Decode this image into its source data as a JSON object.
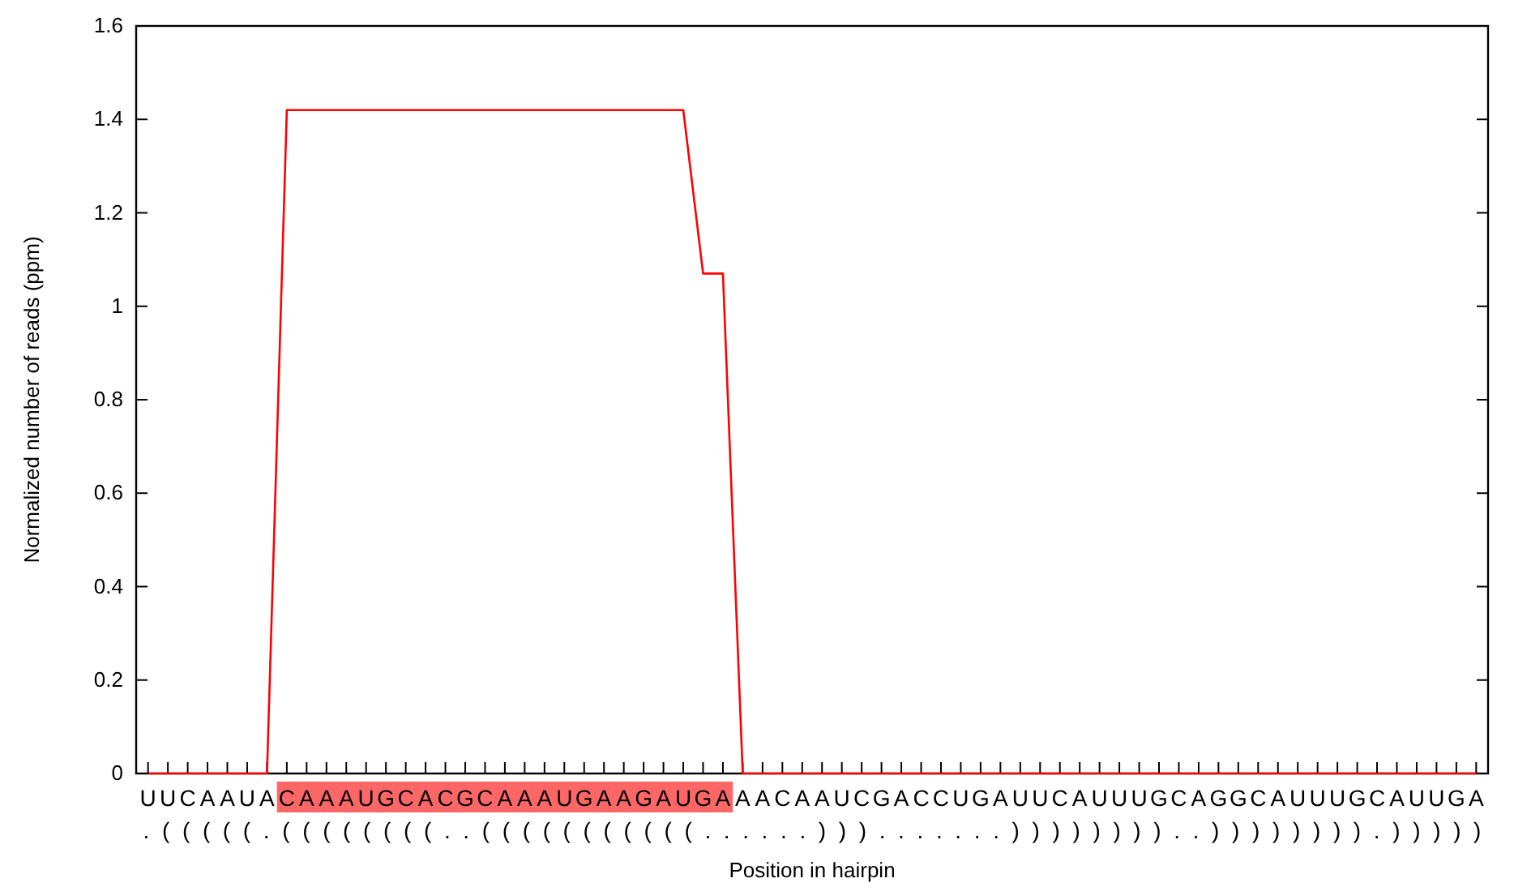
{
  "chart_data": {
    "type": "line",
    "xlabel": "Position in hairpin",
    "ylabel": "Normalized number of reads (ppm)",
    "categories": [
      "U",
      "U",
      "C",
      "A",
      "A",
      "U",
      "A",
      "C",
      "A",
      "A",
      "A",
      "U",
      "G",
      "C",
      "A",
      "C",
      "G",
      "C",
      "A",
      "A",
      "A",
      "U",
      "G",
      "A",
      "A",
      "G",
      "A",
      "U",
      "G",
      "A",
      "A",
      "A",
      "C",
      "A",
      "A",
      "U",
      "C",
      "G",
      "A",
      "C",
      "C",
      "U",
      "G",
      "A",
      "U",
      "U",
      "C",
      "A",
      "U",
      "U",
      "U",
      "G",
      "C",
      "A",
      "G",
      "G",
      "C",
      "A",
      "U",
      "U",
      "U",
      "G",
      "C",
      "A",
      "U",
      "U",
      "G",
      "A"
    ],
    "series": [
      {
        "color": "#ff0000",
        "values": [
          0,
          0,
          0,
          0,
          0,
          0,
          0,
          1.42,
          1.42,
          1.42,
          1.42,
          1.42,
          1.42,
          1.42,
          1.42,
          1.42,
          1.42,
          1.42,
          1.42,
          1.42,
          1.42,
          1.42,
          1.42,
          1.42,
          1.42,
          1.42,
          1.42,
          1.42,
          1.07,
          1.07,
          0,
          0,
          0,
          0,
          0,
          0,
          0,
          0,
          0,
          0,
          0,
          0,
          0,
          0,
          0,
          0,
          0,
          0,
          0,
          0,
          0,
          0,
          0,
          0,
          0,
          0,
          0,
          0,
          0,
          0,
          0,
          0,
          0,
          0,
          0,
          0,
          0,
          0
        ]
      }
    ],
    "ylim": [
      0,
      1.6
    ],
    "yticks": [
      0,
      0.2,
      0.4,
      0.6,
      0.8,
      1,
      1.2,
      1.4,
      1.6
    ],
    "annotations": [
      ".(((((.((((((((..(((((((((((......))).......))))))))..)))))))).)))))"
    ],
    "grid": false,
    "marker": "none",
    "line_style": "solid"
  }
}
